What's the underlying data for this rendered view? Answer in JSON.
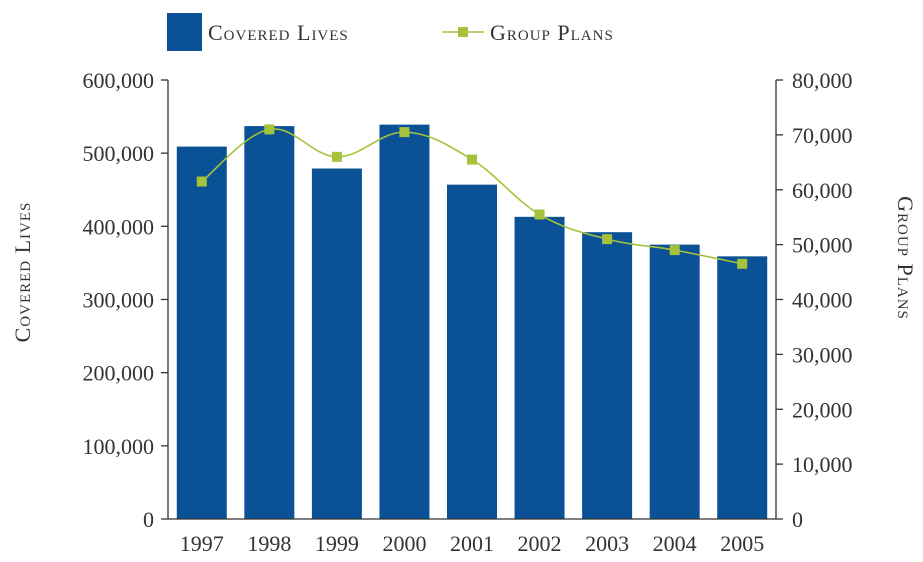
{
  "chart_data": {
    "type": "bar",
    "categories": [
      "1997",
      "1998",
      "1999",
      "2000",
      "2001",
      "2002",
      "2003",
      "2004",
      "2005"
    ],
    "series": [
      {
        "name": "Covered Lives",
        "type": "bar",
        "axis": "left",
        "color": "#0a5295",
        "values": [
          509000,
          537000,
          479000,
          539000,
          457000,
          413000,
          392000,
          375000,
          359000
        ]
      },
      {
        "name": "Group Plans",
        "type": "line",
        "axis": "right",
        "color": "#a6c23a",
        "values": [
          61500,
          71000,
          66000,
          70500,
          65500,
          55500,
          51000,
          49000,
          46500
        ]
      }
    ],
    "ylabel": "Covered Lives",
    "y2label": "Group Plans",
    "ylim": [
      0,
      600000
    ],
    "y2lim": [
      0,
      80000
    ],
    "yticks": [
      "0",
      "100,000",
      "200,000",
      "300,000",
      "400,000",
      "500,000",
      "600,000"
    ],
    "y2ticks": [
      "0",
      "10,000",
      "20,000",
      "30,000",
      "40,000",
      "50,000",
      "60,000",
      "70,000",
      "80,000"
    ],
    "legend_position": "top-left",
    "grid": false
  }
}
